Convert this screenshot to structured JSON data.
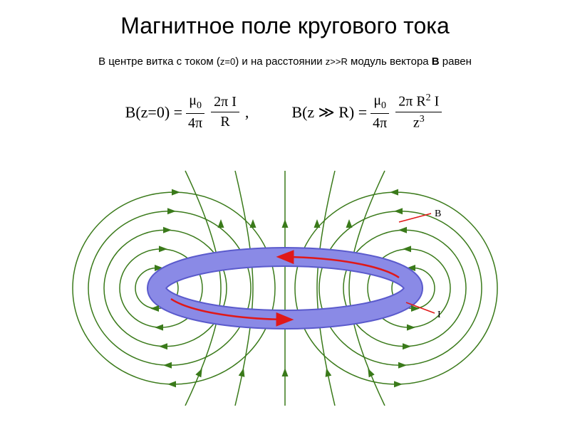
{
  "title": "Магнитное поле кругового тока",
  "subtitle_parts": {
    "p1": "В центре витка с током (",
    "p2": "z=0",
    "p3": ") и на расстоянии ",
    "p4": "z>>R",
    "p5": " модуль вектора ",
    "p6": "В",
    "p7": " равен"
  },
  "formula1": {
    "lhs": "B(z=0) = ",
    "frac1_num": "μ",
    "frac1_num_sub": "0",
    "frac1_den": "4π",
    "frac2_num": "2π I",
    "frac2_den": "R",
    "tail": ","
  },
  "formula2": {
    "lhs": "B(z ≫ R) = ",
    "frac1_num": "μ",
    "frac1_num_sub": "0",
    "frac1_den": "4π",
    "frac2_num_a": "2π R",
    "frac2_num_sup": "2",
    "frac2_num_b": " I",
    "frac2_den_a": "z",
    "frac2_den_sup": "3"
  },
  "diagram": {
    "ring_fill": "#8a8ae6",
    "ring_stroke": "#5a5acc",
    "current_color": "#e01818",
    "field_color": "#3a7a1a",
    "label_B": "B",
    "label_I": "I",
    "label_color": "#000000",
    "label_font_size": 14,
    "line_width_field": 1.5,
    "line_width_current": 2.5,
    "n_outer_loops": 5,
    "n_inner_lines": 5
  }
}
